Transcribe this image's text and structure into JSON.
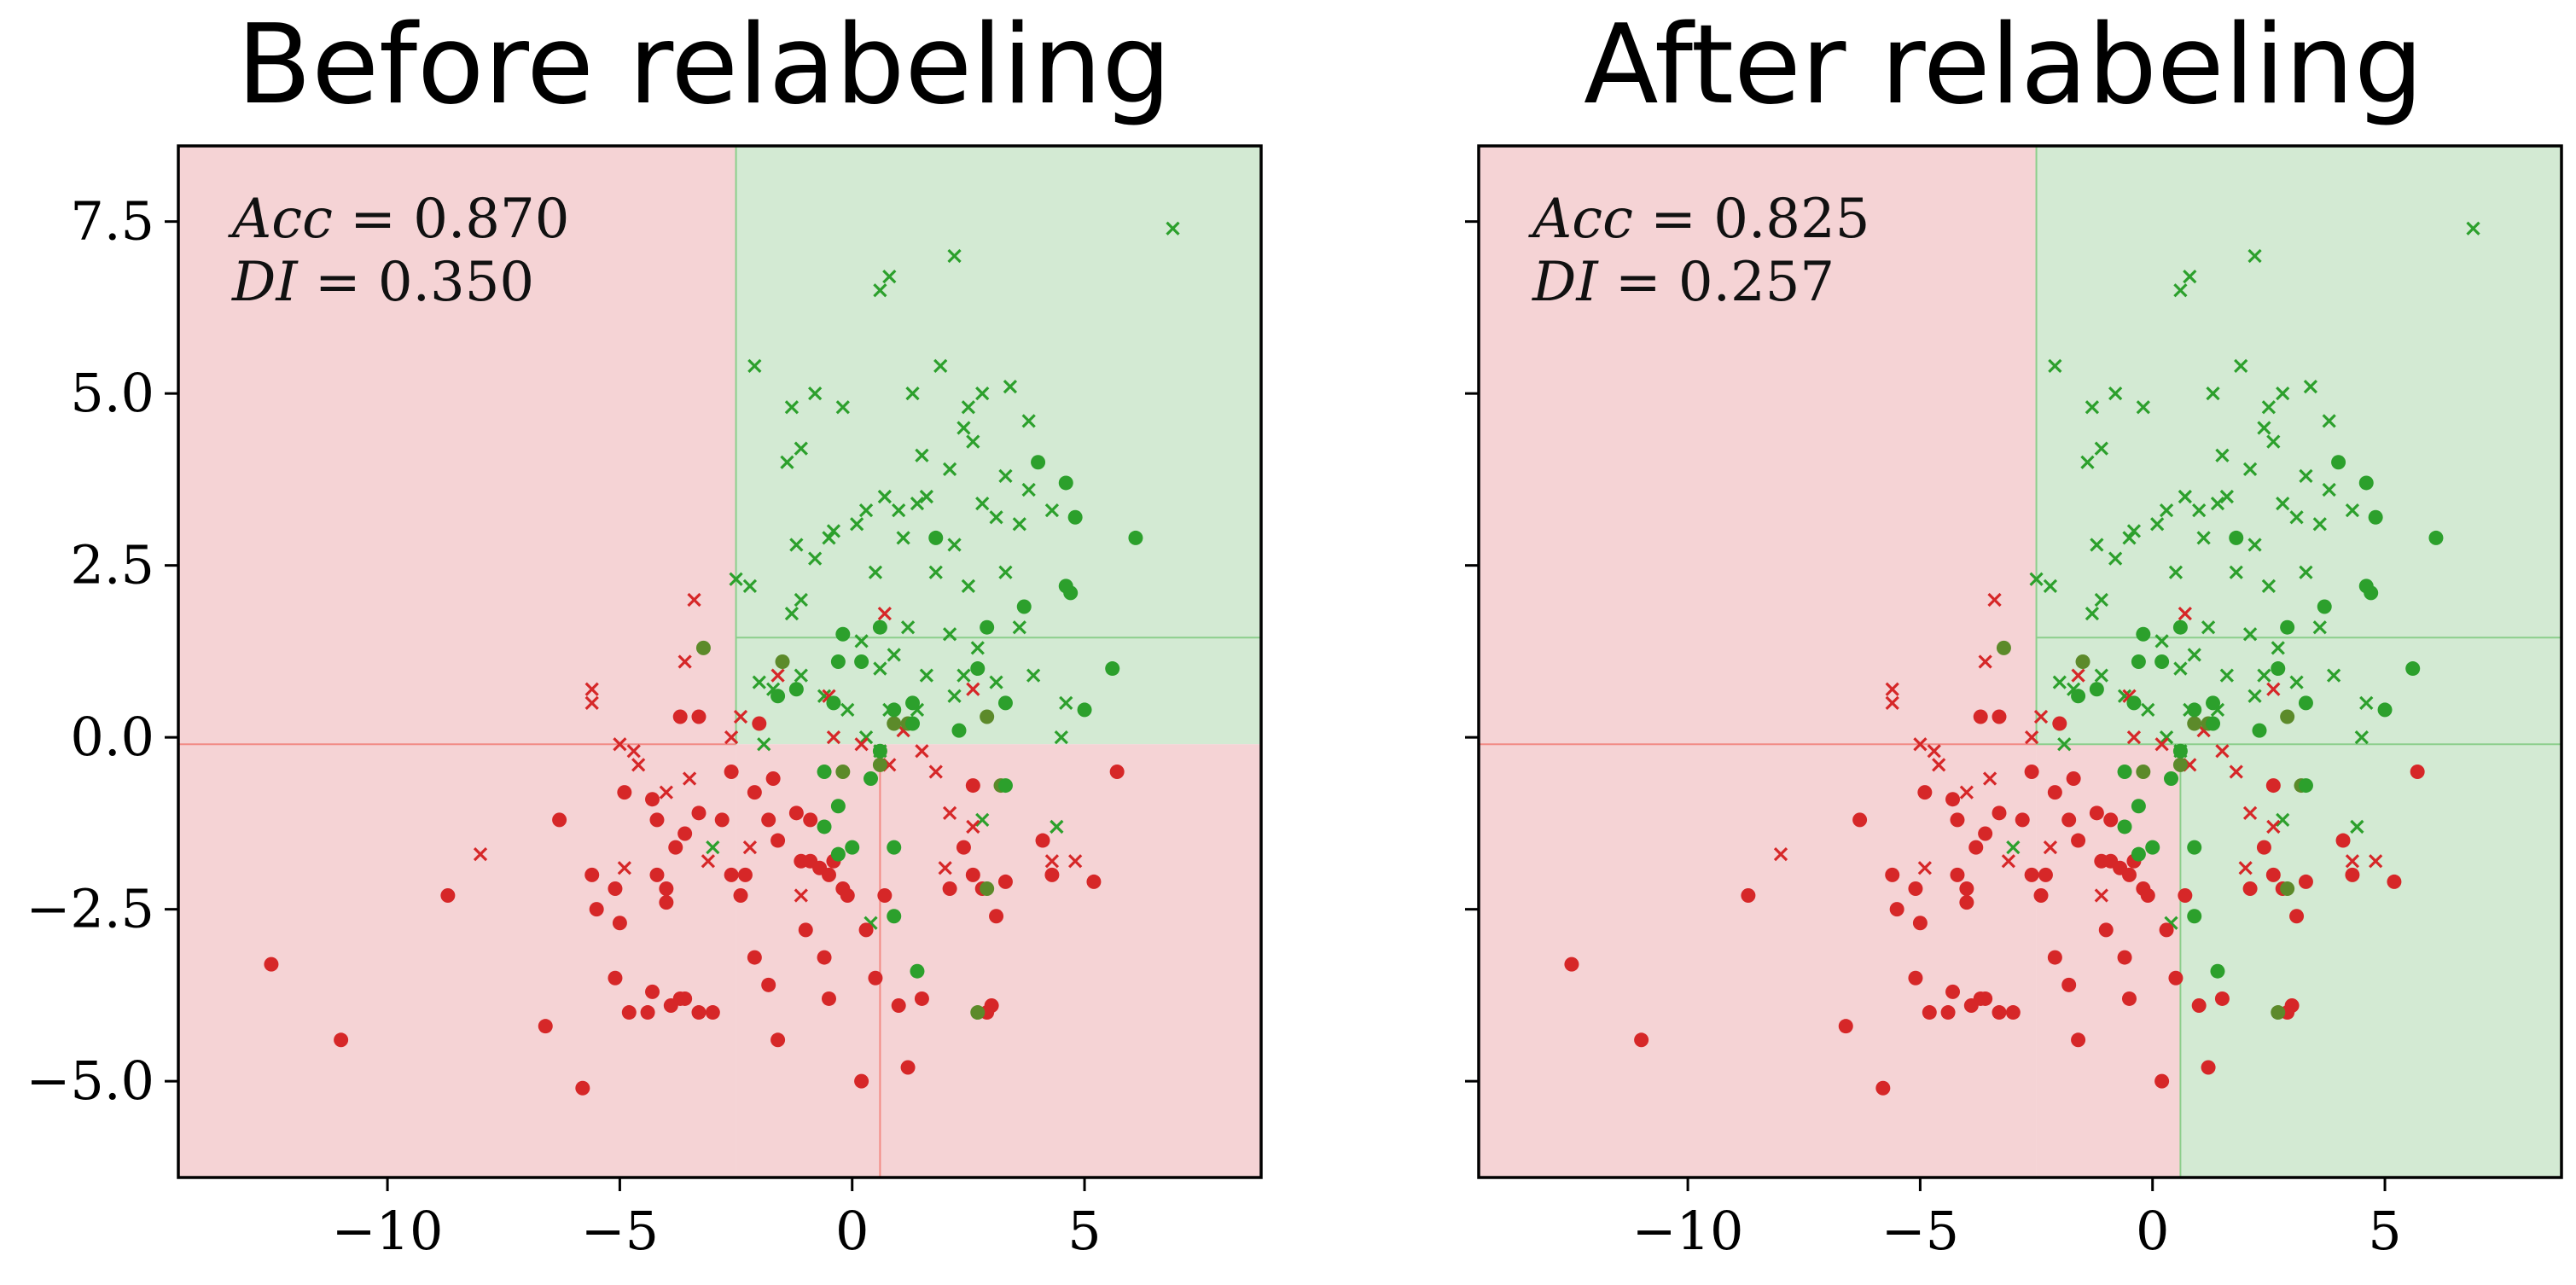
{
  "colors": {
    "region_red": "#f5d3d5",
    "region_green": "#d3ead3",
    "line_red": "#f28a84",
    "line_green": "#8cce8c",
    "point_red": "#d62728",
    "point_green": "#2ca02c",
    "point_olive": "#5c8a2a"
  },
  "axes": {
    "xlim": [
      -14.5,
      8.8
    ],
    "ylim": [
      -6.4,
      8.6
    ],
    "xticks": [
      -10,
      -5,
      0,
      5
    ],
    "xtick_labels": [
      "−10",
      "−5",
      "0",
      "5"
    ],
    "yticks": [
      -5.0,
      -2.5,
      0.0,
      2.5,
      5.0,
      7.5
    ],
    "ytick_labels": [
      "−5.0",
      "−2.5",
      "0.0",
      "2.5",
      "5.0",
      "7.5"
    ]
  },
  "chart_data": [
    {
      "type": "scatter",
      "title": "Before relabeling",
      "annotation": {
        "acc_label": "Acc",
        "acc_eq": " = 0.870",
        "di_label": "DI",
        "di_eq": " = 0.350"
      },
      "regions": [
        {
          "x": [
            -14.5,
            -2.5
          ],
          "y": [
            -6.4,
            8.6
          ],
          "cls": "red"
        },
        {
          "x": [
            -2.5,
            8.8
          ],
          "y": [
            -0.1,
            8.6
          ],
          "cls": "green"
        },
        {
          "x": [
            -2.5,
            8.8
          ],
          "y": [
            -6.4,
            -0.1
          ],
          "cls": "red"
        }
      ],
      "boundaries": [
        {
          "x": [
            -14.5,
            -2.5
          ],
          "y": [
            -0.1,
            -0.1
          ],
          "cls": "red"
        },
        {
          "x": [
            -2.5,
            -2.5
          ],
          "y": [
            -0.1,
            8.6
          ],
          "cls": "green"
        },
        {
          "x": [
            -2.5,
            8.8
          ],
          "y": [
            1.45,
            1.45
          ],
          "cls": "green"
        },
        {
          "x": [
            0.6,
            0.6
          ],
          "y": [
            -6.4,
            -0.1
          ],
          "cls": "red"
        }
      ]
    },
    {
      "type": "scatter",
      "title": "After relabeling",
      "annotation": {
        "acc_label": "Acc",
        "acc_eq": " = 0.825",
        "di_label": "DI",
        "di_eq": " = 0.257"
      },
      "regions": [
        {
          "x": [
            -14.5,
            -2.5
          ],
          "y": [
            -6.4,
            8.6
          ],
          "cls": "red"
        },
        {
          "x": [
            -2.5,
            8.8
          ],
          "y": [
            -0.1,
            8.6
          ],
          "cls": "green"
        },
        {
          "x": [
            -2.5,
            0.6
          ],
          "y": [
            -6.4,
            -0.1
          ],
          "cls": "red"
        },
        {
          "x": [
            0.6,
            8.8
          ],
          "y": [
            -6.4,
            -0.1
          ],
          "cls": "green"
        }
      ],
      "boundaries": [
        {
          "x": [
            -14.5,
            -2.5
          ],
          "y": [
            -0.1,
            -0.1
          ],
          "cls": "red"
        },
        {
          "x": [
            -2.5,
            -2.5
          ],
          "y": [
            -0.1,
            8.6
          ],
          "cls": "green"
        },
        {
          "x": [
            -2.5,
            8.8
          ],
          "y": [
            1.45,
            1.45
          ],
          "cls": "green"
        },
        {
          "x": [
            -2.5,
            8.8
          ],
          "y": [
            -0.1,
            -0.1
          ],
          "cls": "green"
        },
        {
          "x": [
            0.6,
            0.6
          ],
          "y": [
            -6.4,
            -0.1
          ],
          "cls": "green"
        }
      ]
    }
  ],
  "points": {
    "green_x": [
      [
        6.9,
        7.4
      ],
      [
        0.6,
        6.5
      ],
      [
        0.8,
        6.7
      ],
      [
        2.2,
        7.0
      ],
      [
        -2.1,
        5.4
      ],
      [
        -1.3,
        4.8
      ],
      [
        -0.8,
        5.0
      ],
      [
        -0.2,
        4.8
      ],
      [
        1.3,
        5.0
      ],
      [
        1.9,
        5.4
      ],
      [
        2.5,
        4.8
      ],
      [
        2.8,
        5.0
      ],
      [
        3.4,
        5.1
      ],
      [
        3.8,
        4.6
      ],
      [
        2.4,
        4.5
      ],
      [
        -1.4,
        4.0
      ],
      [
        -1.1,
        4.2
      ],
      [
        1.5,
        4.1
      ],
      [
        2.6,
        4.3
      ],
      [
        3.3,
        3.8
      ],
      [
        2.1,
        3.9
      ],
      [
        2.8,
        3.4
      ],
      [
        1.6,
        3.5
      ],
      [
        0.3,
        3.3
      ],
      [
        0.7,
        3.5
      ],
      [
        1.0,
        3.3
      ],
      [
        1.4,
        3.4
      ],
      [
        3.8,
        3.6
      ],
      [
        3.6,
        3.1
      ],
      [
        3.1,
        3.2
      ],
      [
        4.3,
        3.3
      ],
      [
        -0.4,
        3.0
      ],
      [
        0.1,
        3.1
      ],
      [
        -1.2,
        2.8
      ],
      [
        -0.8,
        2.6
      ],
      [
        -0.5,
        2.9
      ],
      [
        1.1,
        2.9
      ],
      [
        2.2,
        2.8
      ],
      [
        2.5,
        2.2
      ],
      [
        0.5,
        2.4
      ],
      [
        1.8,
        2.4
      ],
      [
        3.3,
        2.4
      ],
      [
        -2.5,
        2.3
      ],
      [
        -2.2,
        2.2
      ],
      [
        -1.1,
        2.0
      ],
      [
        -1.3,
        1.8
      ],
      [
        0.2,
        1.4
      ],
      [
        1.2,
        1.6
      ],
      [
        2.1,
        1.5
      ],
      [
        3.6,
        1.6
      ],
      [
        2.7,
        1.3
      ],
      [
        0.9,
        1.2
      ],
      [
        0.6,
        1.0
      ],
      [
        1.6,
        0.9
      ],
      [
        2.4,
        0.9
      ],
      [
        3.1,
        0.8
      ],
      [
        3.9,
        0.9
      ],
      [
        4.6,
        0.5
      ],
      [
        -2.0,
        0.8
      ],
      [
        -1.1,
        0.9
      ],
      [
        -0.6,
        0.6
      ],
      [
        -0.1,
        0.4
      ],
      [
        1.4,
        0.4
      ],
      [
        2.2,
        0.6
      ],
      [
        4.5,
        0.0
      ],
      [
        -1.7,
        0.7
      ],
      [
        0.3,
        0.0
      ],
      [
        0.4,
        -2.7
      ],
      [
        -3.0,
        -1.6
      ],
      [
        2.8,
        -1.2
      ],
      [
        4.4,
        -1.3
      ],
      [
        0.6,
        -0.2
      ],
      [
        -1.9,
        -0.1
      ],
      [
        0.8,
        0.4
      ]
    ],
    "green_dot": [
      [
        4.0,
        4.0
      ],
      [
        4.6,
        3.7
      ],
      [
        4.8,
        3.2
      ],
      [
        6.1,
        2.9
      ],
      [
        4.6,
        2.2
      ],
      [
        4.7,
        2.1
      ],
      [
        1.8,
        2.9
      ],
      [
        3.7,
        1.9
      ],
      [
        2.9,
        1.6
      ],
      [
        -0.2,
        1.5
      ],
      [
        0.6,
        1.6
      ],
      [
        0.2,
        1.1
      ],
      [
        -0.3,
        1.1
      ],
      [
        2.7,
        1.0
      ],
      [
        3.3,
        0.5
      ],
      [
        5.0,
        0.4
      ],
      [
        5.6,
        1.0
      ],
      [
        1.3,
        0.2
      ],
      [
        2.3,
        0.1
      ],
      [
        -1.6,
        0.6
      ],
      [
        -1.2,
        0.7
      ],
      [
        -0.4,
        0.5
      ],
      [
        -0.6,
        -0.5
      ],
      [
        0.4,
        -0.6
      ],
      [
        -0.3,
        -1.0
      ],
      [
        0.0,
        -1.6
      ],
      [
        -0.3,
        -1.7
      ],
      [
        -0.6,
        -1.3
      ],
      [
        0.9,
        -1.6
      ],
      [
        0.9,
        -2.6
      ],
      [
        1.4,
        -3.4
      ],
      [
        3.3,
        -0.7
      ],
      [
        1.3,
        0.5
      ],
      [
        0.9,
        0.4
      ],
      [
        0.6,
        -0.2
      ]
    ],
    "red_x": [
      [
        -3.4,
        2.0
      ],
      [
        -3.6,
        1.1
      ],
      [
        -2.4,
        0.3
      ],
      [
        -1.6,
        0.9
      ],
      [
        -0.5,
        0.6
      ],
      [
        -2.6,
        0.0
      ],
      [
        -5.6,
        0.7
      ],
      [
        -5.6,
        0.5
      ],
      [
        -5.0,
        -0.1
      ],
      [
        -4.7,
        -0.2
      ],
      [
        -3.5,
        -0.6
      ],
      [
        -4.0,
        -0.8
      ],
      [
        -3.1,
        -1.8
      ],
      [
        -1.1,
        -2.3
      ],
      [
        -8.0,
        -1.7
      ],
      [
        -2.2,
        -1.6
      ],
      [
        -4.6,
        -0.4
      ],
      [
        2.1,
        -1.1
      ],
      [
        4.3,
        -1.8
      ],
      [
        4.8,
        -1.8
      ],
      [
        1.8,
        -0.5
      ],
      [
        2.0,
        -1.9
      ],
      [
        2.6,
        -1.3
      ],
      [
        0.8,
        -0.4
      ],
      [
        0.7,
        1.8
      ],
      [
        2.6,
        0.7
      ],
      [
        1.1,
        0.1
      ],
      [
        1.5,
        -0.2
      ],
      [
        -0.4,
        0.0
      ],
      [
        0.2,
        -0.1
      ],
      [
        -4.9,
        -1.9
      ]
    ],
    "red_dot": [
      [
        -12.5,
        -3.3
      ],
      [
        -11.0,
        -4.4
      ],
      [
        -8.7,
        -2.3
      ],
      [
        -6.6,
        -4.2
      ],
      [
        -5.8,
        -5.1
      ],
      [
        -6.3,
        -1.2
      ],
      [
        -5.5,
        -2.5
      ],
      [
        -5.6,
        -2.0
      ],
      [
        -5.1,
        -2.2
      ],
      [
        -5.0,
        -2.7
      ],
      [
        -5.1,
        -3.5
      ],
      [
        -4.8,
        -4.0
      ],
      [
        -4.4,
        -4.0
      ],
      [
        -4.3,
        -3.7
      ],
      [
        -3.9,
        -3.9
      ],
      [
        -3.7,
        -3.8
      ],
      [
        -3.3,
        -4.0
      ],
      [
        -3.0,
        -4.0
      ],
      [
        -3.6,
        -3.8
      ],
      [
        -4.9,
        -0.8
      ],
      [
        -4.3,
        -0.9
      ],
      [
        -4.2,
        -1.2
      ],
      [
        -4.0,
        -2.2
      ],
      [
        -4.0,
        -2.4
      ],
      [
        -3.8,
        -1.6
      ],
      [
        -3.6,
        -1.4
      ],
      [
        -3.3,
        -1.1
      ],
      [
        -2.8,
        -1.2
      ],
      [
        -2.3,
        -2.0
      ],
      [
        -2.1,
        -0.8
      ],
      [
        -1.8,
        -1.2
      ],
      [
        -1.7,
        -0.6
      ],
      [
        -1.6,
        -1.5
      ],
      [
        -1.2,
        -1.1
      ],
      [
        -1.1,
        -1.8
      ],
      [
        -1.0,
        -2.8
      ],
      [
        -0.9,
        -1.8
      ],
      [
        -0.7,
        -1.9
      ],
      [
        -0.5,
        -2.0
      ],
      [
        -0.4,
        -1.8
      ],
      [
        -0.2,
        -2.2
      ],
      [
        -0.1,
        -2.3
      ],
      [
        0.3,
        -2.8
      ],
      [
        0.5,
        -3.5
      ],
      [
        0.7,
        -2.3
      ],
      [
        1.0,
        -3.9
      ],
      [
        1.2,
        -4.8
      ],
      [
        0.2,
        -5.0
      ],
      [
        -2.1,
        -3.2
      ],
      [
        -2.4,
        -2.3
      ],
      [
        -1.8,
        -3.6
      ],
      [
        -1.6,
        -4.4
      ],
      [
        -0.6,
        -3.2
      ],
      [
        -0.5,
        -3.8
      ],
      [
        -3.3,
        0.3
      ],
      [
        -3.7,
        0.3
      ],
      [
        -2.6,
        -0.5
      ],
      [
        -2.0,
        0.2
      ],
      [
        2.1,
        -2.2
      ],
      [
        2.8,
        -2.2
      ],
      [
        3.1,
        -2.6
      ],
      [
        3.0,
        -3.9
      ],
      [
        2.9,
        -4.0
      ],
      [
        2.4,
        -1.6
      ],
      [
        2.6,
        -0.7
      ],
      [
        3.3,
        -2.1
      ],
      [
        4.1,
        -1.5
      ],
      [
        4.3,
        -2.0
      ],
      [
        5.2,
        -2.1
      ],
      [
        5.7,
        -0.5
      ],
      [
        1.5,
        -3.8
      ],
      [
        2.6,
        -2.0
      ],
      [
        -4.2,
        -2.0
      ],
      [
        -2.6,
        -2.0
      ],
      [
        -0.9,
        -1.2
      ]
    ],
    "olive_dot": [
      [
        -3.2,
        1.3
      ],
      [
        -1.5,
        1.1
      ],
      [
        0.6,
        -0.4
      ],
      [
        2.9,
        0.3
      ],
      [
        2.7,
        -4.0
      ],
      [
        2.9,
        -2.2
      ],
      [
        3.2,
        -0.7
      ],
      [
        1.2,
        0.2
      ],
      [
        -0.2,
        -0.5
      ],
      [
        0.9,
        0.2
      ]
    ]
  }
}
